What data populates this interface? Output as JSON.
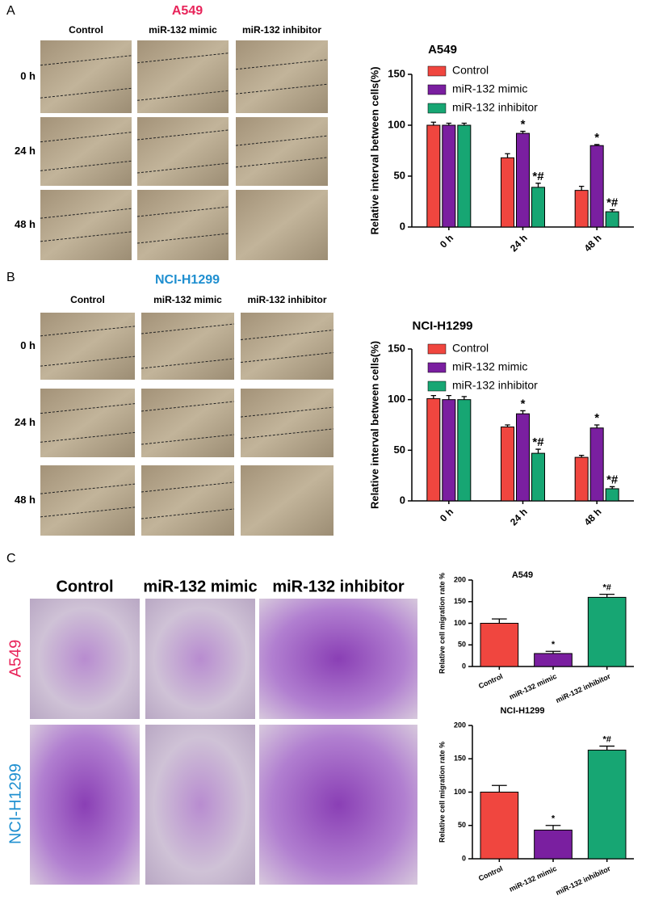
{
  "figure": {
    "panel_a": {
      "letter": "A",
      "title": "A549",
      "columns": [
        "Control",
        "miR-132 mimic",
        "miR-132 inhibitor"
      ],
      "rows": [
        "0 h",
        "24 h",
        "48 h"
      ]
    },
    "panel_b": {
      "letter": "B",
      "title": "NCI-H1299",
      "columns": [
        "Control",
        "miR-132 mimic",
        "miR-132 inhibitor"
      ],
      "rows": [
        "0 h",
        "24 h",
        "48 h"
      ]
    },
    "panel_c": {
      "letter": "C",
      "columns": [
        "Control",
        "miR-132 mimic",
        "miR-132 inhibitor"
      ],
      "rows": [
        "A549",
        "NCI-H1299"
      ]
    }
  },
  "chart_data": [
    {
      "type": "bar",
      "title": "A549",
      "y_label": "Relative interval between cells(%)",
      "categories": [
        "0 h",
        "24 h",
        "48 h"
      ],
      "ylim": [
        0,
        150
      ],
      "yticks": [
        0,
        50,
        100,
        150
      ],
      "series": [
        {
          "name": "Control",
          "color": "#f0463f",
          "values": [
            100,
            68,
            36
          ],
          "errors": [
            3,
            4,
            4
          ],
          "annotations": [
            null,
            null,
            null
          ]
        },
        {
          "name": "miR-132 mimic",
          "color": "#7a1fa0",
          "values": [
            100,
            92,
            80
          ],
          "errors": [
            2,
            2,
            1
          ],
          "annotations": [
            null,
            "*",
            "*"
          ]
        },
        {
          "name": "miR-132 inhibitor",
          "color": "#17a673",
          "values": [
            100,
            39,
            15
          ],
          "errors": [
            2,
            4,
            2
          ],
          "annotations": [
            null,
            "*#",
            "*#"
          ]
        }
      ]
    },
    {
      "type": "bar",
      "title": "NCI-H1299",
      "y_label": "Relative interval between cells(%)",
      "categories": [
        "0 h",
        "24 h",
        "48 h"
      ],
      "ylim": [
        0,
        150
      ],
      "yticks": [
        0,
        50,
        100,
        150
      ],
      "series": [
        {
          "name": "Control",
          "color": "#f0463f",
          "values": [
            101,
            73,
            43
          ],
          "errors": [
            3,
            2,
            2
          ],
          "annotations": [
            null,
            null,
            null
          ]
        },
        {
          "name": "miR-132 mimic",
          "color": "#7a1fa0",
          "values": [
            100,
            86,
            72
          ],
          "errors": [
            4,
            3,
            3
          ],
          "annotations": [
            null,
            "*",
            "*"
          ]
        },
        {
          "name": "miR-132 inhibitor",
          "color": "#17a673",
          "values": [
            100,
            47,
            12
          ],
          "errors": [
            3,
            4,
            2
          ],
          "annotations": [
            null,
            "*#",
            "*#"
          ]
        }
      ]
    },
    {
      "type": "bar",
      "title": "A549",
      "y_label": "Relative cell migration rate %",
      "categories": [
        "Control",
        "miR-132 mimic",
        "miR-132 inhibitor"
      ],
      "ylim": [
        0,
        200
      ],
      "yticks": [
        0,
        50,
        100,
        150,
        200
      ],
      "values": [
        100,
        30,
        160
      ],
      "errors": [
        10,
        5,
        7
      ],
      "annotations": [
        null,
        "*",
        "*#"
      ],
      "colors": [
        "#f0463f",
        "#7a1fa0",
        "#17a673"
      ]
    },
    {
      "type": "bar",
      "title": "NCI-H1299",
      "y_label": "Relative cell migration rate %",
      "categories": [
        "Control",
        "miR-132 mimic",
        "miR-132 inhibitor"
      ],
      "ylim": [
        0,
        200
      ],
      "yticks": [
        0,
        50,
        100,
        150,
        200
      ],
      "values": [
        100,
        43,
        163
      ],
      "errors": [
        10,
        7,
        6
      ],
      "annotations": [
        null,
        "*",
        "*#"
      ],
      "colors": [
        "#f0463f",
        "#7a1fa0",
        "#17a673"
      ]
    }
  ]
}
